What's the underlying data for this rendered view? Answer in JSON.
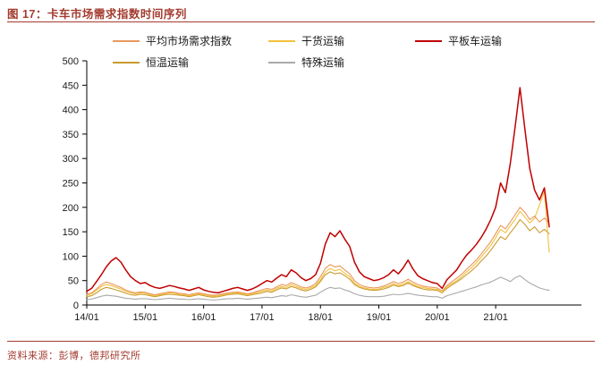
{
  "title": "图 17：卡车市场需求指数时间序列",
  "source": "资料来源：彭博，德邦研究所",
  "colors": {
    "accent": "#a23b2e",
    "axis": "#000000"
  },
  "chart_data": {
    "type": "line",
    "title": "卡车市场需求指数时间序列",
    "xlabel": "",
    "ylabel": "",
    "ylim": [
      0,
      500
    ],
    "y_tick_step": 50,
    "grid": false,
    "legend_position": "top",
    "n_points": 96,
    "x_tick_positions": [
      0,
      12,
      24,
      36,
      48,
      60,
      72,
      84
    ],
    "x_tick_labels": [
      "14/01",
      "15/01",
      "16/01",
      "17/01",
      "18/01",
      "19/01",
      "20/01",
      "21/01"
    ],
    "series": [
      {
        "name": "平均市场需求指数",
        "color": "#e8985e",
        "values": [
          22,
          25,
          33,
          42,
          47,
          44,
          40,
          36,
          31,
          27,
          25,
          27,
          26,
          23,
          21,
          23,
          25,
          27,
          26,
          24,
          23,
          21,
          23,
          25,
          23,
          21,
          20,
          21,
          23,
          25,
          26,
          27,
          25,
          23,
          25,
          28,
          31,
          34,
          32,
          37,
          42,
          40,
          46,
          42,
          37,
          35,
          38,
          44,
          58,
          75,
          83,
          78,
          80,
          72,
          64,
          50,
          42,
          38,
          36,
          35,
          36,
          39,
          43,
          48,
          44,
          47,
          53,
          47,
          42,
          39,
          37,
          36,
          35,
          29,
          40,
          48,
          55,
          63,
          73,
          82,
          92,
          104,
          117,
          130,
          146,
          163,
          156,
          170,
          185,
          200,
          190,
          175,
          182,
          170,
          178,
          168
        ]
      },
      {
        "name": "干货运输",
        "color": "#f3c13f",
        "values": [
          20,
          23,
          30,
          38,
          42,
          40,
          36,
          33,
          28,
          25,
          23,
          25,
          24,
          21,
          19,
          21,
          23,
          25,
          24,
          22,
          21,
          19,
          21,
          23,
          21,
          19,
          18,
          19,
          21,
          23,
          24,
          25,
          23,
          21,
          23,
          26,
          28,
          31,
          29,
          34,
          38,
          36,
          42,
          38,
          34,
          32,
          35,
          40,
          52,
          68,
          75,
          70,
          73,
          65,
          58,
          45,
          38,
          35,
          33,
          32,
          33,
          36,
          39,
          44,
          40,
          43,
          48,
          43,
          38,
          36,
          34,
          33,
          32,
          26,
          37,
          44,
          50,
          58,
          68,
          76,
          86,
          98,
          110,
          122,
          138,
          155,
          148,
          162,
          175,
          192,
          180,
          168,
          178,
          205,
          232,
          108
        ]
      },
      {
        "name": "平板车运输",
        "color": "#c00000",
        "values": [
          28,
          34,
          48,
          62,
          78,
          90,
          97,
          88,
          72,
          58,
          50,
          44,
          46,
          40,
          36,
          34,
          37,
          40,
          38,
          35,
          33,
          30,
          33,
          36,
          31,
          28,
          26,
          25,
          28,
          31,
          34,
          36,
          33,
          30,
          33,
          38,
          44,
          50,
          47,
          55,
          62,
          58,
          72,
          66,
          56,
          50,
          54,
          62,
          85,
          125,
          148,
          140,
          152,
          135,
          120,
          88,
          68,
          58,
          54,
          50,
          52,
          56,
          62,
          72,
          64,
          76,
          92,
          74,
          60,
          54,
          50,
          46,
          44,
          34,
          52,
          62,
          72,
          88,
          102,
          112,
          124,
          138,
          155,
          175,
          200,
          250,
          230,
          290,
          365,
          445,
          360,
          280,
          235,
          215,
          240,
          160
        ]
      },
      {
        "name": "恒温运输",
        "color": "#c99b2d",
        "values": [
          17,
          19,
          25,
          32,
          36,
          34,
          31,
          28,
          24,
          21,
          20,
          22,
          21,
          19,
          17,
          19,
          21,
          22,
          21,
          20,
          19,
          17,
          19,
          21,
          19,
          17,
          16,
          17,
          19,
          21,
          22,
          23,
          21,
          19,
          21,
          23,
          25,
          28,
          26,
          31,
          35,
          33,
          38,
          35,
          31,
          29,
          32,
          37,
          48,
          62,
          68,
          64,
          66,
          60,
          53,
          42,
          36,
          33,
          31,
          30,
          31,
          33,
          36,
          41,
          38,
          40,
          45,
          40,
          36,
          33,
          31,
          31,
          30,
          25,
          34,
          41,
          47,
          54,
          62,
          70,
          79,
          90,
          100,
          112,
          126,
          140,
          134,
          148,
          160,
          175,
          165,
          152,
          160,
          148,
          155,
          146
        ]
      },
      {
        "name": "特殊运输",
        "color": "#a9a9a9",
        "values": [
          11,
          12,
          15,
          18,
          20,
          19,
          18,
          16,
          14,
          13,
          12,
          13,
          13,
          12,
          11,
          12,
          13,
          14,
          13,
          12,
          12,
          11,
          12,
          13,
          12,
          11,
          10,
          11,
          12,
          13,
          13,
          14,
          13,
          12,
          13,
          14,
          15,
          16,
          15,
          17,
          19,
          18,
          21,
          19,
          17,
          16,
          18,
          20,
          26,
          32,
          36,
          34,
          35,
          31,
          28,
          23,
          20,
          18,
          17,
          17,
          17,
          18,
          20,
          22,
          21,
          22,
          24,
          22,
          20,
          19,
          18,
          17,
          17,
          14,
          19,
          22,
          25,
          28,
          31,
          34,
          37,
          41,
          44,
          47,
          52,
          57,
          53,
          48,
          56,
          60,
          52,
          45,
          40,
          35,
          32,
          30
        ]
      }
    ]
  }
}
